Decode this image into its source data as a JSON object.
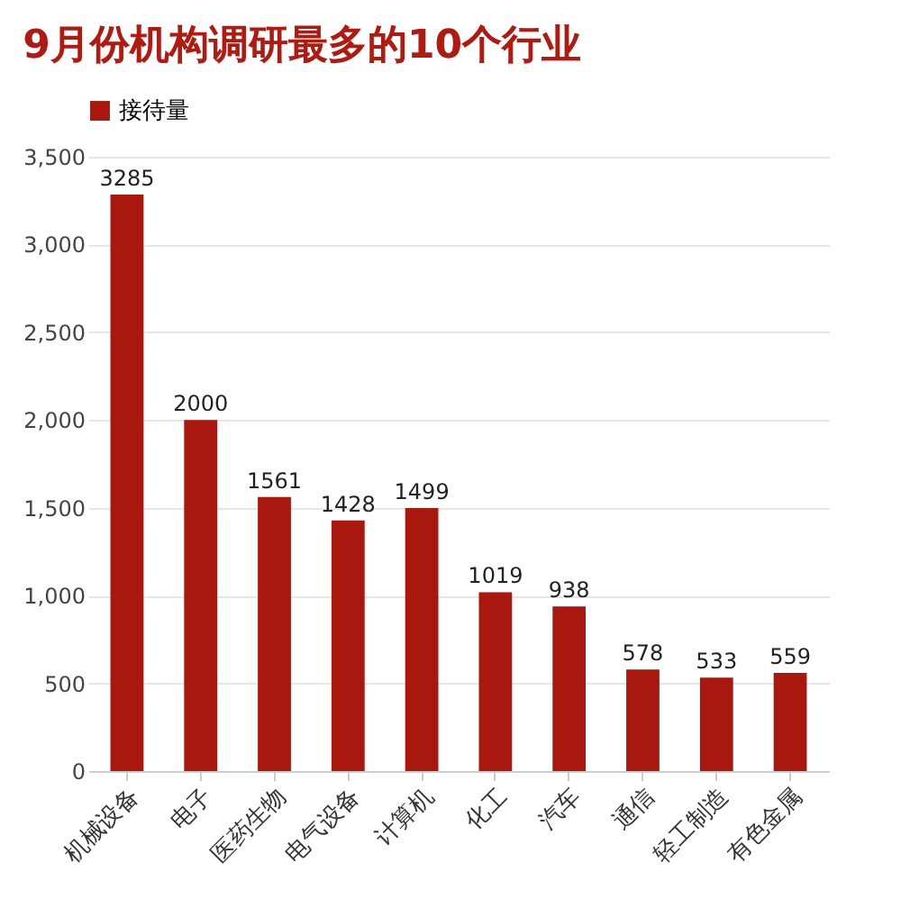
{
  "chart_data": {
    "type": "bar",
    "title": "9月份机构调研最多的10个行业",
    "categories": [
      "机械设备",
      "电子",
      "医药生物",
      "电气设备",
      "计算机",
      "化工",
      "汽车",
      "通信",
      "轻工制造",
      "有色金属"
    ],
    "series": [
      {
        "name": "接待量",
        "color": "#a8180e",
        "values": [
          3285,
          2000,
          1561,
          1428,
          1499,
          1019,
          938,
          578,
          533,
          559
        ]
      }
    ],
    "ylim": [
      0,
      3500
    ],
    "yticks": [
      0,
      500,
      {
        "value": 1000,
        "label": "1,000"
      },
      {
        "value": 1500,
        "label": "1,500"
      },
      {
        "value": 2000,
        "label": "2,000"
      },
      {
        "value": 2500,
        "label": "2,500"
      },
      {
        "value": 3000,
        "label": "3,000"
      },
      {
        "value": 3500,
        "label": "3,500"
      }
    ],
    "grid": "y",
    "legend": "top",
    "data_labels": true
  }
}
